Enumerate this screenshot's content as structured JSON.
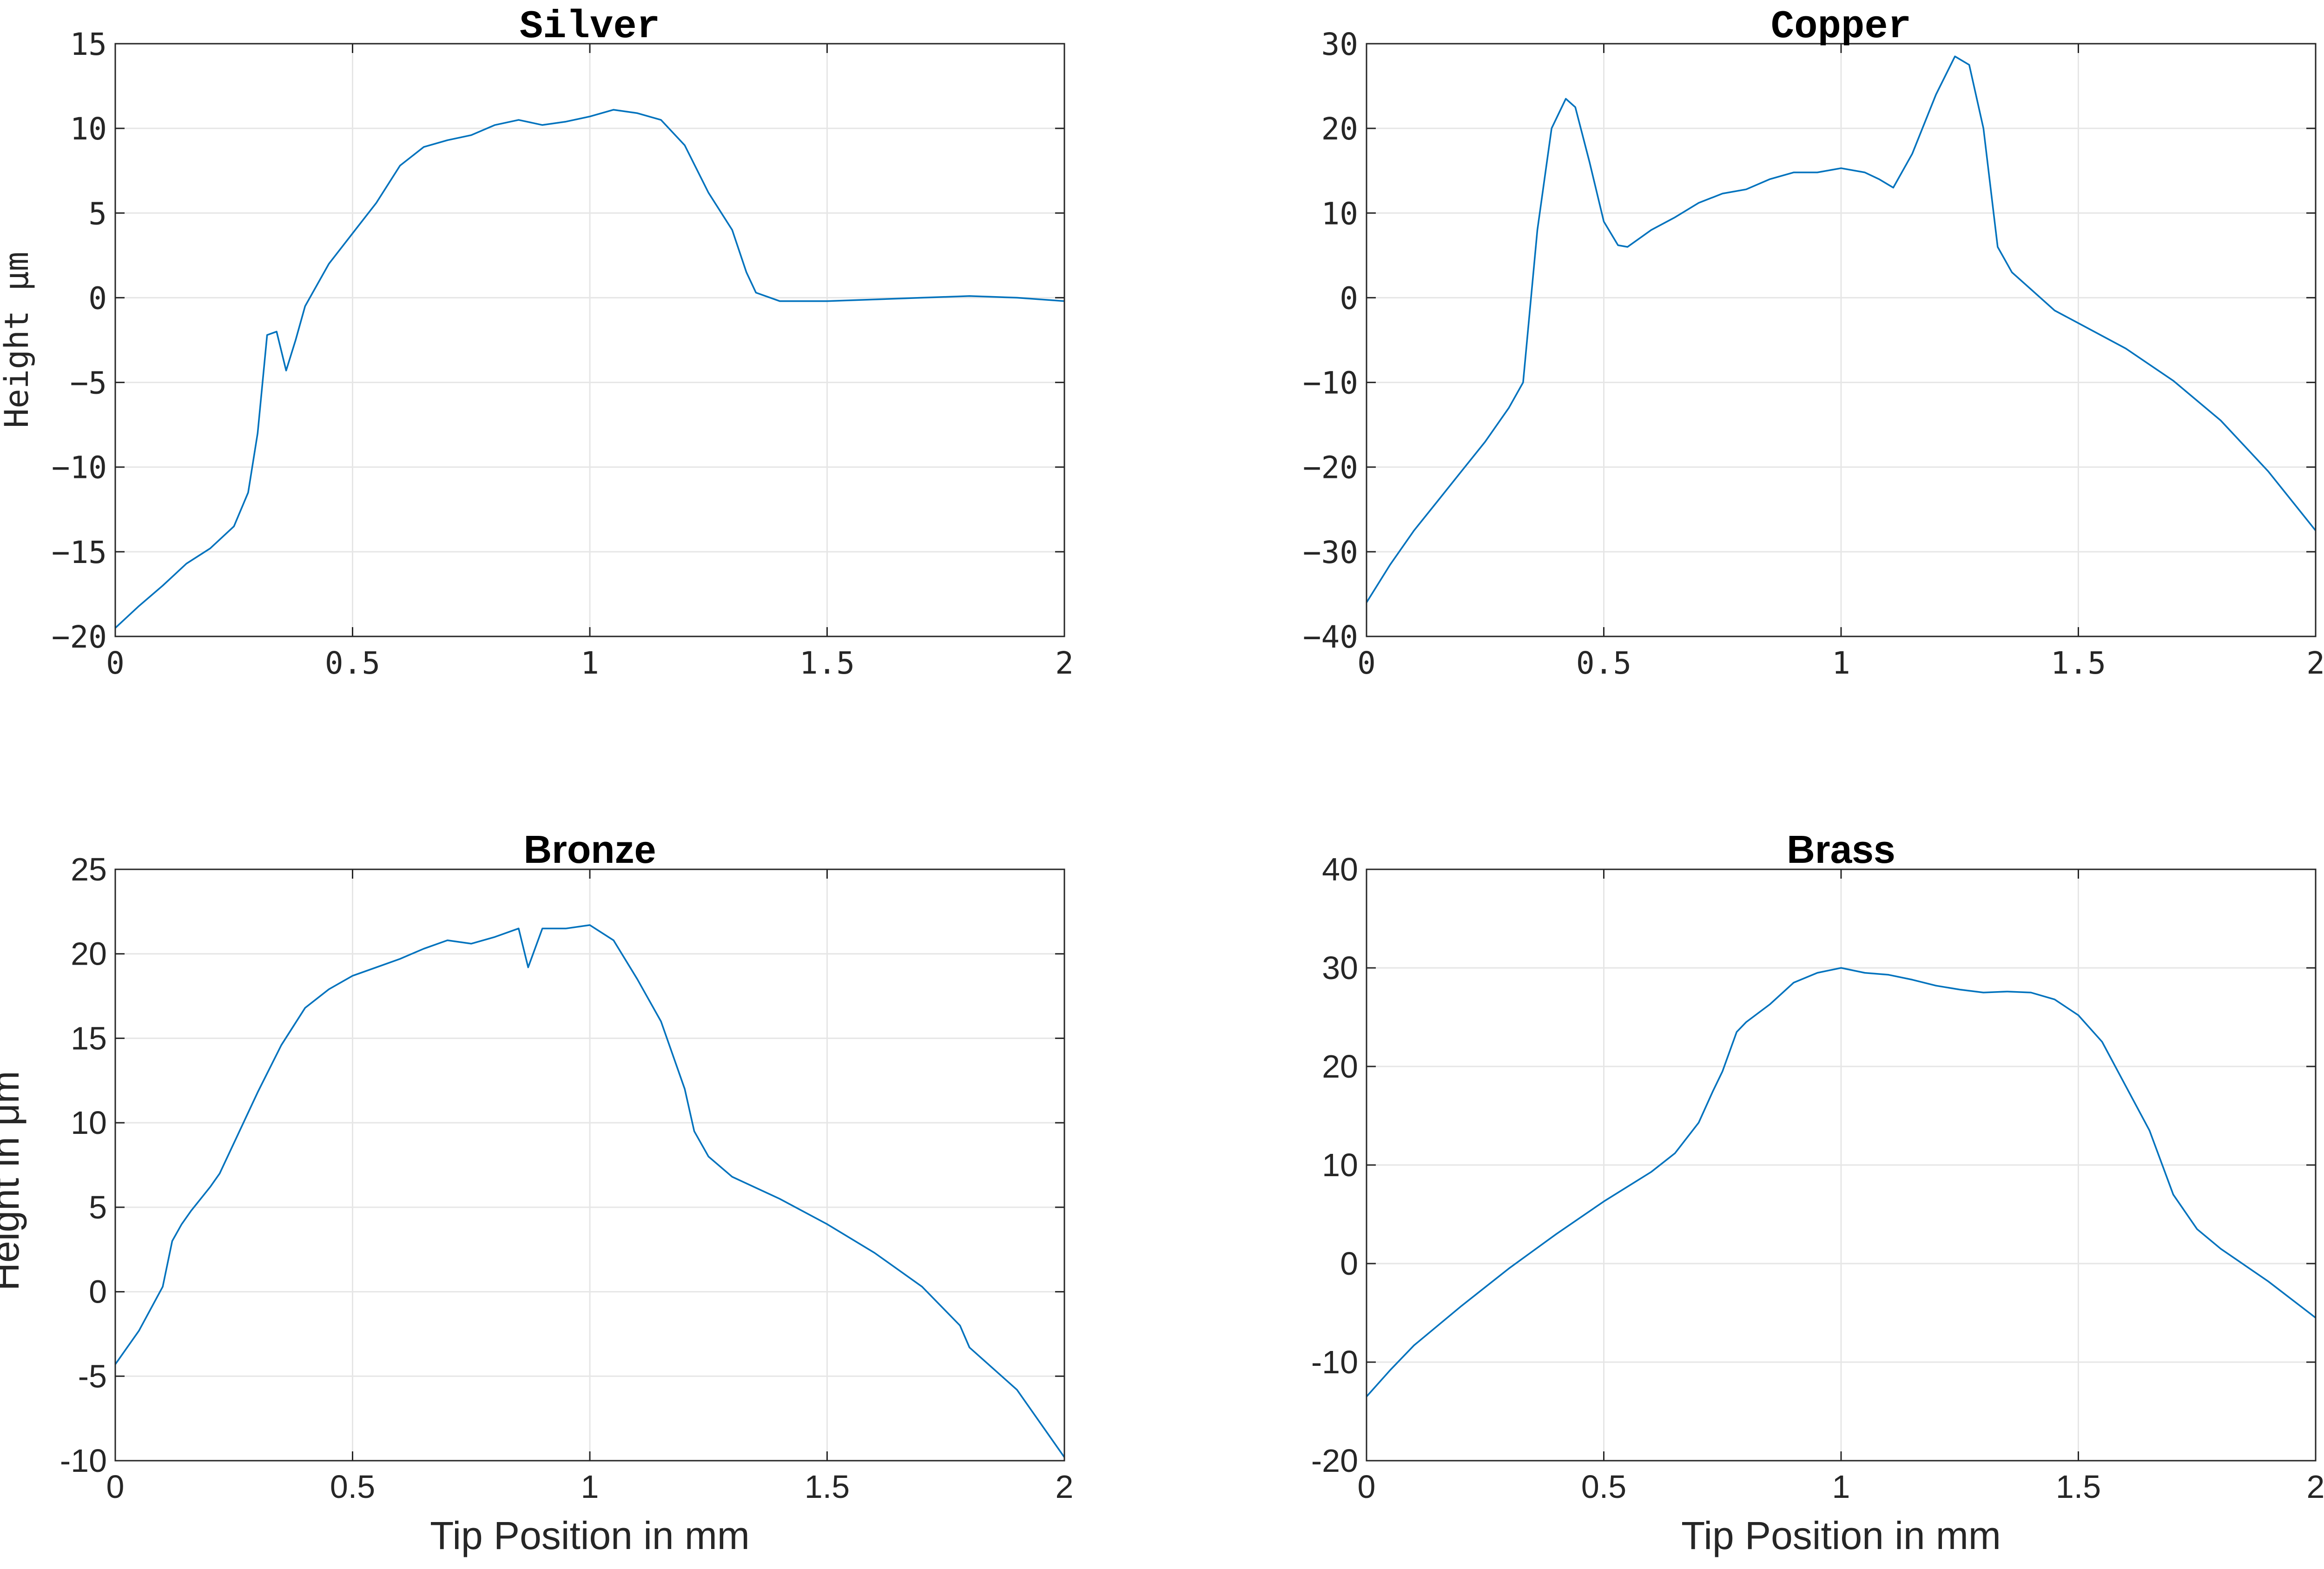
{
  "chart_data": [
    {
      "type": "line",
      "title": "Silver",
      "xlabel": "",
      "ylabel": "Height μm",
      "xlim": [
        0,
        2
      ],
      "ylim": [
        -20,
        15
      ],
      "xticks": [
        "0",
        "0.5",
        "1",
        "1.5",
        "2"
      ],
      "yticks": [
        "15",
        "10",
        "5",
        "0",
        "−5",
        "−10",
        "−15",
        "−20"
      ],
      "grid": true,
      "color": "#0072BD",
      "x": [
        0,
        0.05,
        0.1,
        0.15,
        0.2,
        0.25,
        0.28,
        0.3,
        0.32,
        0.34,
        0.36,
        0.38,
        0.4,
        0.45,
        0.5,
        0.55,
        0.6,
        0.65,
        0.7,
        0.75,
        0.8,
        0.85,
        0.9,
        0.95,
        1.0,
        1.05,
        1.1,
        1.15,
        1.2,
        1.25,
        1.3,
        1.33,
        1.35,
        1.4,
        1.5,
        1.6,
        1.7,
        1.8,
        1.9,
        2.0
      ],
      "y": [
        -19.5,
        -18.2,
        -17.0,
        -15.7,
        -14.8,
        -13.5,
        -11.5,
        -8.0,
        -2.2,
        -2.0,
        -4.3,
        -2.5,
        -0.5,
        2.0,
        3.8,
        5.6,
        7.8,
        8.9,
        9.3,
        9.6,
        10.2,
        10.5,
        10.2,
        10.4,
        10.7,
        11.1,
        10.9,
        10.5,
        9.0,
        6.2,
        4.0,
        1.5,
        0.3,
        -0.2,
        -0.2,
        -0.1,
        0.0,
        0.1,
        0.0,
        -0.2
      ]
    },
    {
      "type": "line",
      "title": "Copper",
      "xlabel": "",
      "ylabel": "",
      "xlim": [
        0,
        2
      ],
      "ylim": [
        -40,
        30
      ],
      "xticks": [
        "0",
        "0.5",
        "1",
        "1.5",
        "2"
      ],
      "yticks": [
        "30",
        "20",
        "10",
        "0",
        "−10",
        "−20",
        "−30",
        "−40"
      ],
      "grid": true,
      "color": "#0072BD",
      "x": [
        0,
        0.05,
        0.1,
        0.15,
        0.2,
        0.25,
        0.3,
        0.33,
        0.36,
        0.39,
        0.42,
        0.44,
        0.47,
        0.5,
        0.53,
        0.55,
        0.6,
        0.65,
        0.7,
        0.75,
        0.8,
        0.85,
        0.9,
        0.95,
        1.0,
        1.05,
        1.08,
        1.11,
        1.15,
        1.2,
        1.24,
        1.27,
        1.3,
        1.33,
        1.36,
        1.4,
        1.45,
        1.5,
        1.6,
        1.7,
        1.8,
        1.9,
        2.0
      ],
      "y": [
        -36.0,
        -31.5,
        -27.5,
        -24.0,
        -20.5,
        -17.0,
        -13.0,
        -10.0,
        8.0,
        20.0,
        23.5,
        22.5,
        16.0,
        9.0,
        6.2,
        6.0,
        8.0,
        9.5,
        11.2,
        12.3,
        12.8,
        14.0,
        14.8,
        14.8,
        15.3,
        14.8,
        14.0,
        13.0,
        17.0,
        24.0,
        28.5,
        27.5,
        20.0,
        6.0,
        3.0,
        1.0,
        -1.5,
        -3.0,
        -6.0,
        -9.8,
        -14.5,
        -20.5,
        -27.5
      ]
    },
    {
      "type": "line",
      "title": "Bronze",
      "xlabel": "Tip Position in mm",
      "ylabel": "Height in μm",
      "xlim": [
        0,
        2
      ],
      "ylim": [
        -10,
        25
      ],
      "xticks": [
        "0",
        "0.5",
        "1",
        "1.5",
        "2"
      ],
      "yticks": [
        "25",
        "20",
        "15",
        "10",
        "5",
        "0",
        "-5",
        "-10"
      ],
      "grid": true,
      "color": "#0072BD",
      "x": [
        0,
        0.05,
        0.1,
        0.12,
        0.14,
        0.16,
        0.18,
        0.2,
        0.22,
        0.25,
        0.3,
        0.35,
        0.4,
        0.45,
        0.5,
        0.55,
        0.6,
        0.65,
        0.7,
        0.75,
        0.8,
        0.85,
        0.87,
        0.9,
        0.95,
        1.0,
        1.05,
        1.1,
        1.15,
        1.2,
        1.22,
        1.25,
        1.3,
        1.4,
        1.5,
        1.6,
        1.7,
        1.78,
        1.8,
        1.9,
        2.0
      ],
      "y": [
        -4.3,
        -2.3,
        0.3,
        3.0,
        4.0,
        4.8,
        5.5,
        6.2,
        7.0,
        8.8,
        11.8,
        14.6,
        16.8,
        17.9,
        18.7,
        19.2,
        19.7,
        20.3,
        20.8,
        20.6,
        21.0,
        21.5,
        19.2,
        21.5,
        21.5,
        21.7,
        20.8,
        18.5,
        16.0,
        12.0,
        9.5,
        8.0,
        6.8,
        5.5,
        4.0,
        2.3,
        0.3,
        -2.0,
        -3.3,
        -5.8,
        -9.8
      ]
    },
    {
      "type": "line",
      "title": "Brass",
      "xlabel": "Tip Position in mm",
      "ylabel": "",
      "xlim": [
        0,
        2
      ],
      "ylim": [
        -20,
        40
      ],
      "xticks": [
        "0",
        "0.5",
        "1",
        "1.5",
        "2"
      ],
      "yticks": [
        "40",
        "30",
        "20",
        "10",
        "0",
        "-10",
        "-20"
      ],
      "grid": true,
      "color": "#0072BD",
      "x": [
        0,
        0.05,
        0.1,
        0.2,
        0.3,
        0.4,
        0.5,
        0.6,
        0.65,
        0.7,
        0.73,
        0.75,
        0.78,
        0.8,
        0.85,
        0.9,
        0.95,
        1.0,
        1.05,
        1.1,
        1.15,
        1.2,
        1.25,
        1.3,
        1.35,
        1.4,
        1.45,
        1.5,
        1.55,
        1.6,
        1.65,
        1.7,
        1.75,
        1.8,
        1.9,
        2.0
      ],
      "y": [
        -13.5,
        -10.8,
        -8.3,
        -4.3,
        -0.5,
        3.0,
        6.3,
        9.3,
        11.2,
        14.3,
        17.5,
        19.5,
        23.5,
        24.5,
        26.3,
        28.5,
        29.5,
        30.0,
        29.5,
        29.3,
        28.8,
        28.2,
        27.8,
        27.5,
        27.6,
        27.5,
        26.8,
        25.2,
        22.5,
        18.0,
        13.5,
        7.0,
        3.5,
        1.5,
        -1.8,
        -5.5
      ]
    }
  ]
}
